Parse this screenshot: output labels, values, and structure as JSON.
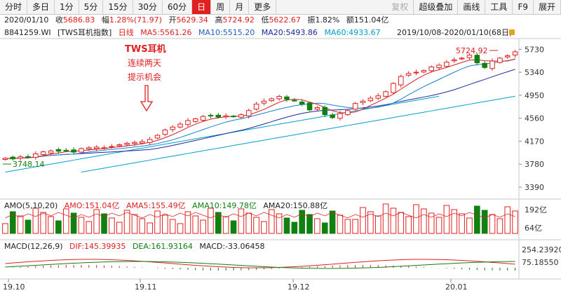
{
  "toolbar": {
    "tabs": [
      {
        "label": "分时",
        "state": ""
      },
      {
        "label": "多日",
        "state": ""
      },
      {
        "label": "1分",
        "state": ""
      },
      {
        "label": "5分",
        "state": ""
      },
      {
        "label": "15分",
        "state": ""
      },
      {
        "label": "30分",
        "state": ""
      },
      {
        "label": "60分",
        "state": ""
      },
      {
        "label": "日",
        "state": "active"
      },
      {
        "label": "周",
        "state": ""
      },
      {
        "label": "月",
        "state": ""
      },
      {
        "label": "更多",
        "state": ""
      }
    ],
    "right_tabs": [
      {
        "label": "复权",
        "state": "disabled"
      },
      {
        "label": "超级叠加",
        "state": ""
      },
      {
        "label": "画线",
        "state": ""
      },
      {
        "label": "工具",
        "state": ""
      },
      {
        "label": "F9",
        "state": ""
      },
      {
        "label": "展开",
        "state": ""
      }
    ]
  },
  "quote": {
    "date": "2020/01/10",
    "close_label": "收",
    "close": "5686.83",
    "change_label": "幅",
    "change": "1.28%(71.97)",
    "open_label": "开",
    "open": "5629.34",
    "high_label": "高",
    "high": "5724.92",
    "low_label": "低",
    "low": "5622.67",
    "amp_label": "振",
    "amp": "1.82%",
    "amount_label": "额",
    "amount": "151.04亿"
  },
  "index_row": {
    "code": "8841259.WI",
    "name": "[TWS耳机指数]",
    "period": "日线",
    "ma5": "MA5:5561.26",
    "ma10": "MA10:5515.20",
    "ma20": "MA20:5493.86",
    "ma60": "MA60:4933.67",
    "range": "2019/10/08-2020/01/10(68日)"
  },
  "annotation": {
    "title": "TWS耳机",
    "line1": "连续两天",
    "line2": "提示机会"
  },
  "markers": {
    "high": "5724.92",
    "low": "3748.14"
  },
  "amo_row": {
    "name": "AMO(5,10,20)",
    "amo": "AMO:151.04亿",
    "ama5": "AMA5:155.49亿",
    "ama10": "AMA10:149.78亿",
    "ama20": "AMA20:150.88亿"
  },
  "macd_row": {
    "name": "MACD(12,26,9)",
    "dif": "DIF:145.39935",
    "dea": "DEA:161.93164",
    "macd": "MACD:-33.06458"
  },
  "amo_axis": [
    "192亿",
    "64亿"
  ],
  "macd_axis": [
    "254.23920",
    "75.18550"
  ],
  "colors": {
    "up": "#e02020",
    "down": "#108010",
    "ma5": "#d02020",
    "ma10": "#1a7fd0",
    "ma20": "#1a2a9a",
    "ma60": "#00a0c8",
    "accent": "#e02020"
  },
  "chart_data": {
    "type": "candlestick",
    "title": "TWS耳机指数",
    "y_ticks": [
      5730,
      5340,
      4950,
      4560,
      4170,
      3780,
      3390
    ],
    "ylim": [
      3200,
      5900
    ],
    "x_ticks": [
      "19.10",
      "19.11",
      "19.12",
      "20.01"
    ],
    "series_names": [
      "MA5",
      "MA10",
      "MA20",
      "MA60"
    ],
    "closes": [
      3880,
      3870,
      3905,
      3900,
      3955,
      3990,
      4005,
      4000,
      4015,
      3985,
      4045,
      4060,
      4070,
      4060,
      4080,
      4110,
      4135,
      4150,
      4165,
      4200,
      4270,
      4360,
      4410,
      4460,
      4520,
      4550,
      4590,
      4600,
      4580,
      4600,
      4590,
      4620,
      4690,
      4800,
      4850,
      4890,
      4930,
      4880,
      4860,
      4800,
      4700,
      4740,
      4620,
      4570,
      4640,
      4690,
      4810,
      4850,
      4900,
      4940,
      5010,
      5150,
      5270,
      5320,
      5340,
      5370,
      5430,
      5460,
      5510,
      5550,
      5580,
      5630,
      5500,
      5420,
      5530,
      5580,
      5620,
      5687
    ]
  }
}
